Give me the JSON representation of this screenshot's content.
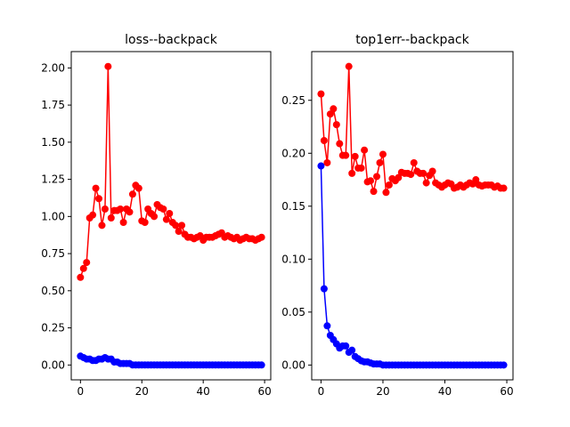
{
  "chart_data": [
    {
      "type": "line",
      "title": "loss--backpack",
      "xlabel": "",
      "ylabel": "",
      "xlim": [
        -3,
        62
      ],
      "ylim": [
        -0.1,
        2.11
      ],
      "xticks": [
        0,
        20,
        40,
        60
      ],
      "yticks": [
        0.0,
        0.25,
        0.5,
        0.75,
        1.0,
        1.25,
        1.5,
        1.75,
        2.0
      ],
      "ytick_decimals": 2,
      "grid": false,
      "series": [
        {
          "color": "#ff0000",
          "marker": "circle",
          "x": [
            0,
            1,
            2,
            3,
            4,
            5,
            6,
            7,
            8,
            9,
            10,
            11,
            12,
            13,
            14,
            15,
            16,
            17,
            18,
            19,
            20,
            21,
            22,
            23,
            24,
            25,
            26,
            27,
            28,
            29,
            30,
            31,
            32,
            33,
            34,
            35,
            36,
            37,
            38,
            39,
            40,
            41,
            42,
            43,
            44,
            45,
            46,
            47,
            48,
            49,
            50,
            51,
            52,
            53,
            54,
            55,
            56,
            57,
            58,
            59
          ],
          "y": [
            0.59,
            0.65,
            0.69,
            0.99,
            1.01,
            1.19,
            1.12,
            0.94,
            1.05,
            2.01,
            0.99,
            1.04,
            1.04,
            1.05,
            0.96,
            1.05,
            1.03,
            1.15,
            1.21,
            1.19,
            0.97,
            0.96,
            1.05,
            1.02,
            1.0,
            1.08,
            1.06,
            1.05,
            0.98,
            1.02,
            0.96,
            0.94,
            0.9,
            0.94,
            0.88,
            0.86,
            0.86,
            0.85,
            0.86,
            0.87,
            0.84,
            0.86,
            0.86,
            0.86,
            0.87,
            0.88,
            0.89,
            0.86,
            0.87,
            0.86,
            0.85,
            0.86,
            0.84,
            0.85,
            0.86,
            0.85,
            0.85,
            0.84,
            0.85,
            0.86
          ]
        },
        {
          "color": "#0000ff",
          "marker": "circle",
          "x": [
            0,
            1,
            2,
            3,
            4,
            5,
            6,
            7,
            8,
            9,
            10,
            11,
            12,
            13,
            14,
            15,
            16,
            17,
            18,
            19,
            20,
            21,
            22,
            23,
            24,
            25,
            26,
            27,
            28,
            29,
            30,
            31,
            32,
            33,
            34,
            35,
            36,
            37,
            38,
            39,
            40,
            41,
            42,
            43,
            44,
            45,
            46,
            47,
            48,
            49,
            50,
            51,
            52,
            53,
            54,
            55,
            56,
            57,
            58,
            59
          ],
          "y": [
            0.06,
            0.05,
            0.04,
            0.04,
            0.03,
            0.03,
            0.04,
            0.04,
            0.05,
            0.04,
            0.04,
            0.02,
            0.02,
            0.01,
            0.01,
            0.01,
            0.01,
            0.0,
            0.0,
            0.0,
            0.0,
            0.0,
            0.0,
            0.0,
            0.0,
            0.0,
            0.0,
            0.0,
            0.0,
            0.0,
            0.0,
            0.0,
            0.0,
            0.0,
            0.0,
            0.0,
            0.0,
            0.0,
            0.0,
            0.0,
            0.0,
            0.0,
            0.0,
            0.0,
            0.0,
            0.0,
            0.0,
            0.0,
            0.0,
            0.0,
            0.0,
            0.0,
            0.0,
            0.0,
            0.0,
            0.0,
            0.0,
            0.0,
            0.0,
            0.0
          ]
        }
      ]
    },
    {
      "type": "line",
      "title": "top1err--backpack",
      "xlabel": "",
      "ylabel": "",
      "xlim": [
        -3,
        62
      ],
      "ylim": [
        -0.014,
        0.296
      ],
      "xticks": [
        0,
        20,
        40,
        60
      ],
      "yticks": [
        0.0,
        0.05,
        0.1,
        0.15,
        0.2,
        0.25
      ],
      "ytick_decimals": 2,
      "grid": false,
      "series": [
        {
          "color": "#ff0000",
          "marker": "circle",
          "x": [
            0,
            1,
            2,
            3,
            4,
            5,
            6,
            7,
            8,
            9,
            10,
            11,
            12,
            13,
            14,
            15,
            16,
            17,
            18,
            19,
            20,
            21,
            22,
            23,
            24,
            25,
            26,
            27,
            28,
            29,
            30,
            31,
            32,
            33,
            34,
            35,
            36,
            37,
            38,
            39,
            40,
            41,
            42,
            43,
            44,
            45,
            46,
            47,
            48,
            49,
            50,
            51,
            52,
            53,
            54,
            55,
            56,
            57,
            58,
            59
          ],
          "y": [
            0.256,
            0.212,
            0.191,
            0.237,
            0.242,
            0.227,
            0.209,
            0.198,
            0.198,
            0.282,
            0.181,
            0.197,
            0.186,
            0.186,
            0.203,
            0.173,
            0.174,
            0.164,
            0.178,
            0.191,
            0.199,
            0.163,
            0.17,
            0.176,
            0.174,
            0.177,
            0.182,
            0.181,
            0.181,
            0.18,
            0.191,
            0.183,
            0.181,
            0.181,
            0.172,
            0.179,
            0.183,
            0.172,
            0.17,
            0.168,
            0.17,
            0.172,
            0.171,
            0.167,
            0.168,
            0.17,
            0.168,
            0.17,
            0.172,
            0.171,
            0.175,
            0.17,
            0.169,
            0.17,
            0.17,
            0.17,
            0.168,
            0.169,
            0.167,
            0.167
          ]
        },
        {
          "color": "#0000ff",
          "marker": "circle",
          "x": [
            0,
            1,
            2,
            3,
            4,
            5,
            6,
            7,
            8,
            9,
            10,
            11,
            12,
            13,
            14,
            15,
            16,
            17,
            18,
            19,
            20,
            21,
            22,
            23,
            24,
            25,
            26,
            27,
            28,
            29,
            30,
            31,
            32,
            33,
            34,
            35,
            36,
            37,
            38,
            39,
            40,
            41,
            42,
            43,
            44,
            45,
            46,
            47,
            48,
            49,
            50,
            51,
            52,
            53,
            54,
            55,
            56,
            57,
            58,
            59
          ],
          "y": [
            0.188,
            0.072,
            0.037,
            0.028,
            0.024,
            0.02,
            0.016,
            0.018,
            0.018,
            0.012,
            0.014,
            0.008,
            0.006,
            0.004,
            0.003,
            0.003,
            0.002,
            0.001,
            0.001,
            0.001,
            0.0,
            0.0,
            0.0,
            0.0,
            0.0,
            0.0,
            0.0,
            0.0,
            0.0,
            0.0,
            0.0,
            0.0,
            0.0,
            0.0,
            0.0,
            0.0,
            0.0,
            0.0,
            0.0,
            0.0,
            0.0,
            0.0,
            0.0,
            0.0,
            0.0,
            0.0,
            0.0,
            0.0,
            0.0,
            0.0,
            0.0,
            0.0,
            0.0,
            0.0,
            0.0,
            0.0,
            0.0,
            0.0,
            0.0,
            0.0
          ]
        }
      ]
    }
  ]
}
